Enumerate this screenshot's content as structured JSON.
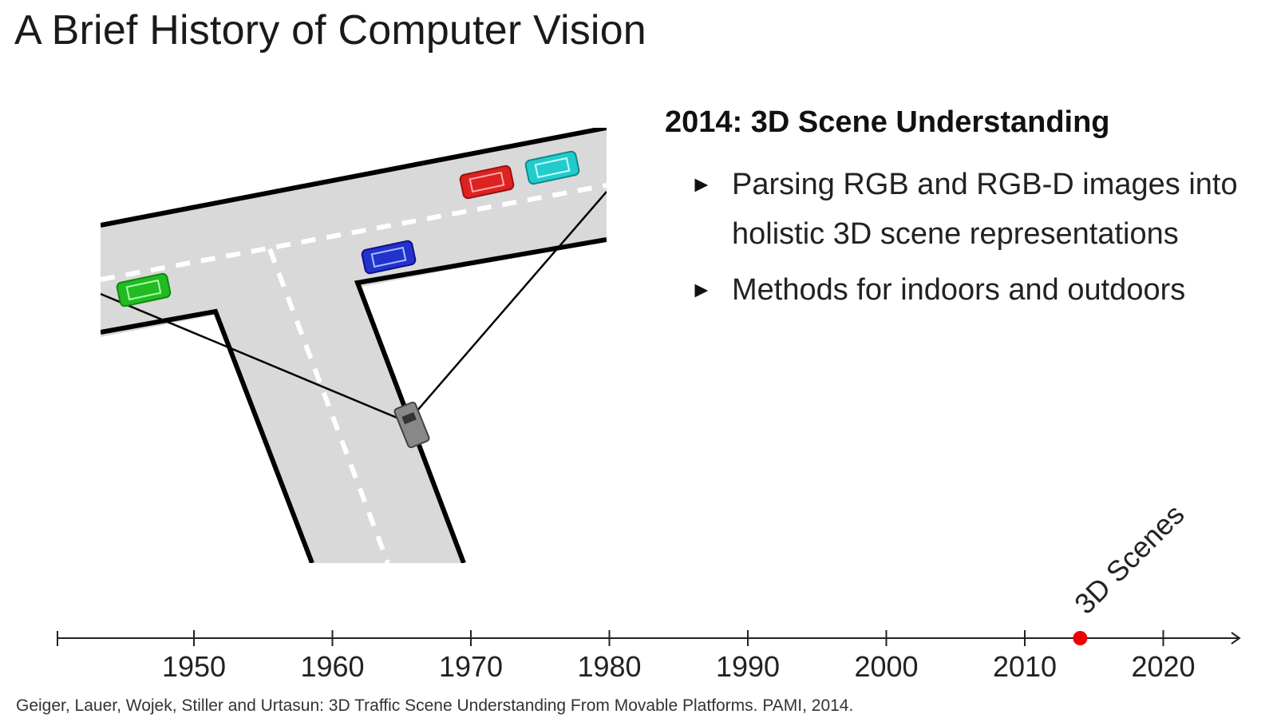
{
  "title": "A Brief History of Computer Vision",
  "section": {
    "heading": "2014: 3D Scene Understanding",
    "bullets": [
      "Parsing RGB and RGB-D images into holistic 3D scene representations",
      "Methods for indoors and outdoors"
    ],
    "bullet_glyph": "►"
  },
  "figure": {
    "car_colors": [
      "#22bb22",
      "#2233cc",
      "#dd2222",
      "#22cccc",
      "#888888"
    ],
    "road_fill": "#d9d9d9"
  },
  "timeline": {
    "years": [
      "1950",
      "1960",
      "1970",
      "1980",
      "1990",
      "2000",
      "2010",
      "2020"
    ],
    "event_year": "2014",
    "event_label": "3D Scenes",
    "marker_color": "#ee0000"
  },
  "citation": "Geiger, Lauer, Wojek, Stiller and Urtasun: 3D Traffic Scene Understanding From Movable Platforms. PAMI, 2014."
}
